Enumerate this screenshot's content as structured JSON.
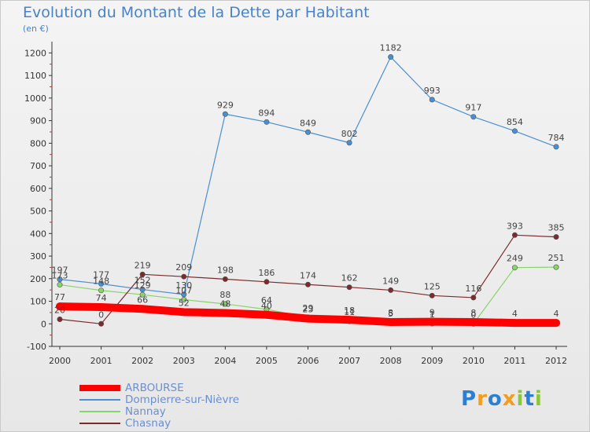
{
  "chart_data": {
    "type": "line",
    "title": "Evolution du Montant de la Dette par Habitant",
    "subtitle": "(en €)",
    "categories": [
      "2000",
      "2001",
      "2002",
      "2003",
      "2004",
      "2005",
      "2006",
      "2007",
      "2008",
      "2009",
      "2010",
      "2011",
      "2012"
    ],
    "ylim": [
      -100,
      1250
    ],
    "yticks": [
      -100,
      0,
      100,
      200,
      300,
      400,
      500,
      600,
      700,
      800,
      900,
      1000,
      1100,
      1200
    ],
    "grid": false,
    "legend_position": "bottom-left",
    "series": [
      {
        "name": "ARBOURSE",
        "color": "#ff0000",
        "values": [
          77,
          74,
          66,
          52,
          48,
          40,
          23,
          18,
          8,
          9,
          8,
          4,
          4
        ]
      },
      {
        "name": "Dompierre-sur-Nièvre",
        "color": "#4b8fd0",
        "values": [
          197,
          177,
          152,
          130,
          929,
          894,
          849,
          802,
          1182,
          993,
          917,
          854,
          784
        ]
      },
      {
        "name": "Nannay",
        "color": "#88d46a",
        "values": [
          173,
          148,
          129,
          107,
          88,
          64,
          29,
          11,
          5,
          1,
          0,
          249,
          251
        ]
      },
      {
        "name": "Chasnay",
        "color": "#7b2b2b",
        "values": [
          20,
          0,
          219,
          209,
          198,
          186,
          174,
          162,
          149,
          125,
          116,
          393,
          385
        ]
      }
    ],
    "data_labels": [
      {
        "series": 0,
        "labels": [
          "77",
          "74",
          "66",
          "52",
          "48",
          "40",
          "23",
          "18",
          "8",
          "9",
          "8",
          "4",
          "4"
        ]
      },
      {
        "series": 1,
        "labels": [
          "197",
          "177",
          "152",
          "130",
          "929",
          "894",
          "849",
          "802",
          "1182",
          "993",
          "917",
          "854",
          "784"
        ]
      },
      {
        "series": 2,
        "labels": [
          "173",
          "148",
          "129",
          "107",
          "88",
          "64",
          "29",
          "11",
          "5",
          "1",
          "0",
          "249",
          "251"
        ]
      },
      {
        "series": 3,
        "labels": [
          "20",
          "0",
          "219",
          "209",
          "198",
          "186",
          "174",
          "162",
          "149",
          "125",
          "116",
          "393",
          "385"
        ]
      }
    ]
  },
  "legend": {
    "items": [
      {
        "label": "ARBOURSE",
        "color": "#ff0000"
      },
      {
        "label": "Dompierre-sur-Nièvre",
        "color": "#4b8fd0"
      },
      {
        "label": "Nannay",
        "color": "#88d46a"
      },
      {
        "label": "Chasnay",
        "color": "#7b2b2b"
      }
    ]
  },
  "logo": {
    "text": "Proxiti",
    "letters": [
      "P",
      "r",
      "o",
      "x",
      "i",
      "t",
      "i"
    ],
    "colors": [
      "#2d7fd3",
      "#f39c1e",
      "#2d7fd3",
      "#f39c1e",
      "#8cc63f",
      "#2d7fd3",
      "#8cc63f"
    ]
  }
}
